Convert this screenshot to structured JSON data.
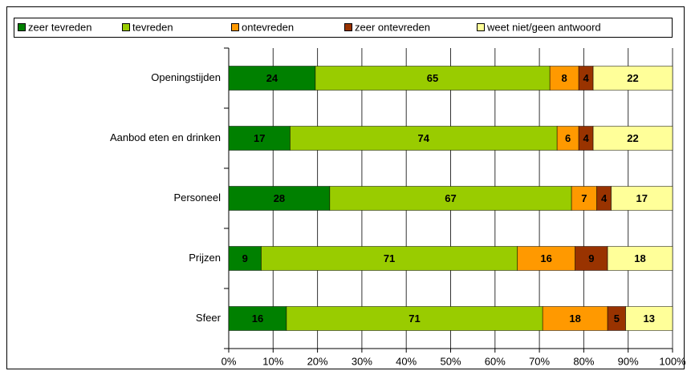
{
  "chart_data": {
    "type": "bar",
    "orientation": "horizontal",
    "stacked": "percent",
    "categories": [
      "Openingstijden",
      "Aanbod eten en drinken",
      "Personeel",
      "Prijzen",
      "Sfeer"
    ],
    "series": [
      {
        "name": "zeer tevreden",
        "color": "#008000",
        "values": [
          24,
          17,
          28,
          9,
          16
        ]
      },
      {
        "name": "tevreden",
        "color": "#99cc00",
        "values": [
          65,
          74,
          67,
          71,
          71
        ]
      },
      {
        "name": "ontevreden",
        "color": "#ff9900",
        "values": [
          8,
          6,
          7,
          16,
          18
        ]
      },
      {
        "name": "zeer ontevreden",
        "color": "#993300",
        "values": [
          4,
          4,
          4,
          9,
          5
        ]
      },
      {
        "name": "weet niet/geen antwoord",
        "color": "#ffff99",
        "values": [
          22,
          22,
          17,
          18,
          13
        ]
      }
    ],
    "xlim": [
      0,
      100
    ],
    "xticks": [
      {
        "value": 0,
        "label": "0%"
      },
      {
        "value": 10,
        "label": "10%"
      },
      {
        "value": 20,
        "label": "20%"
      },
      {
        "value": 30,
        "label": "30%"
      },
      {
        "value": 40,
        "label": "40%"
      },
      {
        "value": 50,
        "label": "50%"
      },
      {
        "value": 60,
        "label": "60%"
      },
      {
        "value": 70,
        "label": "70%"
      },
      {
        "value": 80,
        "label": "80%"
      },
      {
        "value": 90,
        "label": "90%"
      },
      {
        "value": 100,
        "label": "100%"
      }
    ],
    "grid": true,
    "legend": "top"
  }
}
